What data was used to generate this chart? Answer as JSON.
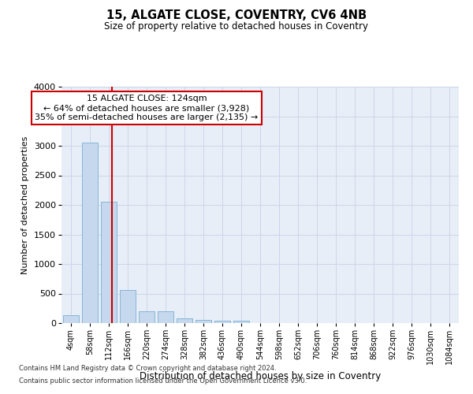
{
  "title": "15, ALGATE CLOSE, COVENTRY, CV6 4NB",
  "subtitle": "Size of property relative to detached houses in Coventry",
  "xlabel": "Distribution of detached houses by size in Coventry",
  "ylabel": "Number of detached properties",
  "bar_color": "#c5d8ed",
  "bar_edge_color": "#7bafd4",
  "grid_color": "#cdd6e8",
  "bg_color": "#e8eef8",
  "vline_color": "#cc0000",
  "vline_x_index": 2.15,
  "annotation_text": "15 ALGATE CLOSE: 124sqm\n← 64% of detached houses are smaller (3,928)\n35% of semi-detached houses are larger (2,135) →",
  "annotation_box_color": "#ffffff",
  "annotation_box_edge": "#cc0000",
  "categories": [
    "4sqm",
    "58sqm",
    "112sqm",
    "166sqm",
    "220sqm",
    "274sqm",
    "328sqm",
    "382sqm",
    "436sqm",
    "490sqm",
    "544sqm",
    "598sqm",
    "652sqm",
    "706sqm",
    "760sqm",
    "814sqm",
    "868sqm",
    "922sqm",
    "976sqm",
    "1030sqm",
    "1084sqm"
  ],
  "values": [
    135,
    3060,
    2060,
    560,
    195,
    195,
    75,
    55,
    45,
    40,
    0,
    0,
    0,
    0,
    0,
    0,
    0,
    0,
    0,
    0,
    0
  ],
  "ylim": [
    0,
    4000
  ],
  "yticks": [
    0,
    500,
    1000,
    1500,
    2000,
    2500,
    3000,
    3500,
    4000
  ],
  "footer1": "Contains HM Land Registry data © Crown copyright and database right 2024.",
  "footer2": "Contains public sector information licensed under the Open Government Licence v3.0."
}
